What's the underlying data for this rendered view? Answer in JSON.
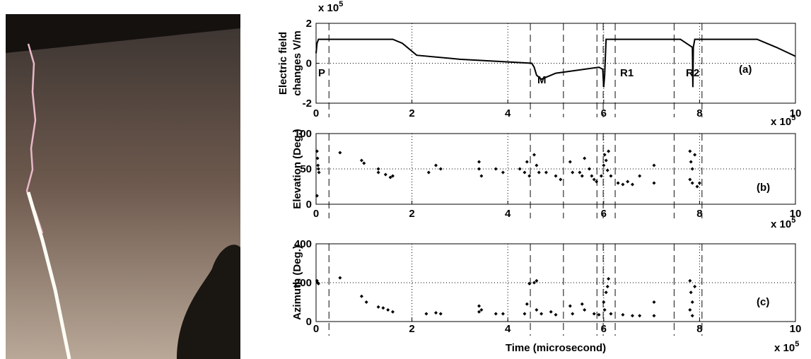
{
  "chart_data": [
    {
      "type": "line",
      "ylabel": [
        "Electric field",
        "changes V/m"
      ],
      "y_multiplier": [
        "x 10",
        "5"
      ],
      "x_multiplier": [
        "x 10",
        "5"
      ],
      "xlim": [
        0,
        10
      ],
      "xticks": [
        0,
        2,
        4,
        6,
        8,
        10
      ],
      "ylim": [
        -2,
        2
      ],
      "yticks": [
        -2,
        0,
        2
      ],
      "grid": true,
      "vlines": [
        0.27,
        4.47,
        5.16,
        5.86,
        5.99,
        6.24,
        7.47,
        8.05
      ],
      "annotations": [
        "P",
        "M",
        "R1",
        "R2",
        "(a)"
      ],
      "series": [
        {
          "color": "#000000",
          "x": [
            0,
            0.02,
            0.05,
            1.6,
            1.8,
            2.1,
            3.0,
            4.5,
            4.55,
            4.6,
            4.7,
            5.0,
            5.9,
            5.98,
            6.0,
            6.02,
            6.05,
            7.6,
            7.85,
            7.86,
            7.87,
            7.9,
            9.2,
            9.6,
            10
          ],
          "values": [
            0.5,
            1.0,
            1.2,
            1.2,
            1.0,
            0.4,
            0.2,
            0,
            -0.2,
            -0.6,
            -0.8,
            -0.5,
            -0.2,
            -0.3,
            -1.2,
            -0.6,
            1.2,
            1.2,
            0.8,
            -1.2,
            0.8,
            1.2,
            1.2,
            0.8,
            0.35
          ]
        }
      ]
    },
    {
      "type": "scatter",
      "ylabel": [
        "Elevation (Deg.)"
      ],
      "x_multiplier": [
        "x 10",
        "5"
      ],
      "xlim": [
        0,
        10
      ],
      "xticks": [
        0,
        2,
        4,
        6,
        8,
        10
      ],
      "ylim": [
        0,
        100
      ],
      "yticks": [
        0,
        50,
        100
      ],
      "grid": true,
      "vlines": [
        0.27,
        4.47,
        5.16,
        5.86,
        5.99,
        6.24,
        7.47,
        8.05
      ],
      "annotations": [
        "(b)"
      ],
      "series": [
        {
          "color": "#000000",
          "x": [
            0.02,
            0.03,
            0.05,
            0.04,
            0.06,
            0.02,
            0.5,
            0.95,
            1.0,
            1.3,
            1.3,
            1.45,
            1.55,
            1.6,
            2.35,
            2.5,
            2.6,
            3.4,
            3.4,
            3.45,
            3.75,
            3.9,
            4.25,
            4.35,
            4.4,
            4.45,
            4.55,
            4.6,
            4.65,
            4.8,
            5.0,
            5.1,
            5.3,
            5.35,
            5.5,
            5.55,
            5.6,
            5.7,
            5.75,
            5.8,
            5.85,
            5.95,
            6.0,
            6.02,
            6.05,
            6.08,
            6.1,
            6.15,
            6.3,
            6.4,
            6.5,
            6.6,
            6.75,
            7.05,
            7.05,
            7.8,
            7.82,
            7.85,
            7.8,
            7.85,
            7.9,
            7.95,
            8.0
          ],
          "values": [
            75,
            65,
            50,
            55,
            45,
            12,
            73,
            62,
            58,
            50,
            45,
            42,
            38,
            40,
            45,
            55,
            50,
            60,
            50,
            40,
            50,
            45,
            50,
            45,
            60,
            40,
            70,
            55,
            45,
            45,
            40,
            35,
            60,
            45,
            45,
            40,
            65,
            50,
            40,
            35,
            32,
            40,
            55,
            70,
            62,
            48,
            75,
            40,
            30,
            28,
            32,
            28,
            40,
            55,
            30,
            75,
            60,
            50,
            35,
            30,
            70,
            25,
            30
          ]
        }
      ]
    },
    {
      "type": "scatter",
      "ylabel": [
        "Azimuth (Deg.)"
      ],
      "xlabel": "Time (microsecond)",
      "x_multiplier": [
        "x 10",
        "5"
      ],
      "xlim": [
        0,
        10
      ],
      "xticks": [
        0,
        2,
        4,
        6,
        8,
        10
      ],
      "ylim": [
        0,
        400
      ],
      "yticks": [
        0,
        200,
        400
      ],
      "grid": true,
      "vlines": [
        0.27,
        4.47,
        5.16,
        5.86,
        5.99,
        6.24,
        7.47,
        8.05
      ],
      "annotations": [
        "(c)"
      ],
      "series": [
        {
          "color": "#000000",
          "x": [
            0.03,
            0.05,
            0.02,
            0.5,
            0.95,
            1.05,
            1.3,
            1.4,
            1.5,
            1.6,
            2.3,
            2.5,
            2.6,
            3.4,
            3.4,
            3.45,
            3.75,
            3.9,
            4.35,
            4.4,
            4.45,
            4.55,
            4.6,
            4.6,
            4.7,
            4.9,
            5.0,
            5.3,
            5.35,
            5.55,
            5.6,
            5.8,
            5.9,
            6.0,
            6.05,
            6.1,
            6.08,
            6.02,
            6.15,
            6.4,
            6.6,
            6.75,
            7.05,
            7.05,
            7.8,
            7.82,
            7.85,
            7.8,
            7.85,
            7.9
          ],
          "values": [
            200,
            195,
            210,
            225,
            130,
            100,
            75,
            70,
            60,
            50,
            40,
            45,
            40,
            80,
            50,
            60,
            40,
            40,
            40,
            90,
            195,
            200,
            210,
            60,
            40,
            50,
            35,
            80,
            40,
            90,
            60,
            40,
            35,
            100,
            150,
            220,
            180,
            60,
            40,
            35,
            30,
            30,
            100,
            30,
            210,
            150,
            100,
            60,
            30,
            180
          ]
        }
      ]
    }
  ]
}
